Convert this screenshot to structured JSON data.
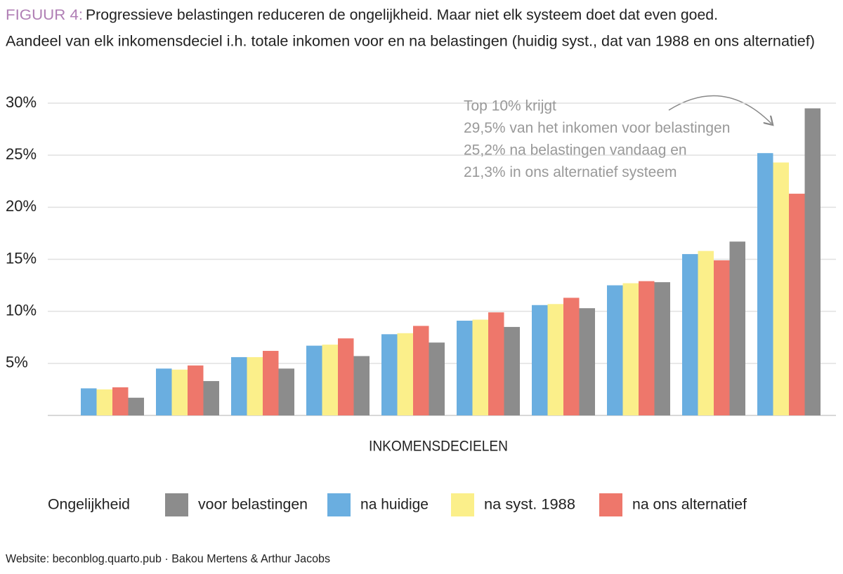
{
  "chart_data": {
    "type": "bar",
    "title_prefix": "FIGUUR 4:",
    "title": "Progressieve belastingen reduceren de ongelijkheid. Maar niet elk systeem doet dat even goed.",
    "subtitle": "Aandeel van elk inkomensdeciel i.h. totale inkomen voor en na belastingen (huidig syst., dat van 1988 en ons alternatief)",
    "x_label": "INKOMENSDECIELEN",
    "legend_title": "Ongelijkheid",
    "annotation": [
      "Top 10% krijgt",
      "29,5% van het inkomen voor belastingen",
      "25,2% na belastingen vandaag en",
      "21,3% in ons alternatief systeem"
    ],
    "source": "Website: beconblog.quarto.pub · Bakou Mertens & Arthur Jacobs",
    "categories": [
      null,
      null,
      null,
      null,
      null,
      null,
      null,
      null,
      null,
      null
    ],
    "series": [
      {
        "name": "voor belastingen",
        "color": "#8c8c8c",
        "values": [
          1.7,
          3.3,
          4.5,
          5.7,
          7.0,
          8.5,
          10.3,
          12.8,
          16.7,
          29.5
        ]
      },
      {
        "name": "na huidige",
        "color": "#6aaee0",
        "values": [
          2.6,
          4.5,
          5.6,
          6.7,
          7.8,
          9.1,
          10.6,
          12.5,
          15.5,
          25.2
        ]
      },
      {
        "name": "na syst. 1988",
        "color": "#fbef8a",
        "values": [
          2.5,
          4.4,
          5.6,
          6.8,
          7.9,
          9.2,
          10.7,
          12.7,
          15.8,
          24.3
        ]
      },
      {
        "name": "na ons alternatief",
        "color": "#ee776b",
        "values": [
          2.7,
          4.8,
          6.2,
          7.4,
          8.6,
          9.9,
          11.3,
          12.9,
          14.9,
          21.3
        ]
      }
    ],
    "ylim": [
      0,
      30
    ],
    "yticks": [
      {
        "value": 5,
        "label": "5%"
      },
      {
        "value": 10,
        "label": "10%"
      },
      {
        "value": 15,
        "label": "15%"
      },
      {
        "value": 20,
        "label": "20%"
      },
      {
        "value": 25,
        "label": "25%"
      },
      {
        "value": 30,
        "label": "30%"
      }
    ],
    "grid": true
  }
}
